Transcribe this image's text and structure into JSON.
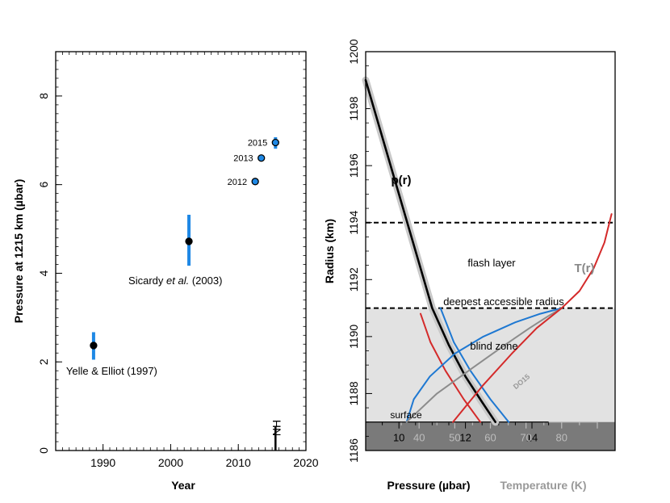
{
  "chart_data": [
    {
      "type": "scatter",
      "xlabel": "Year",
      "ylabel": "Pressure at 1215 km (µbar)",
      "xlim": [
        1983,
        2020
      ],
      "ylim": [
        0,
        9
      ],
      "xticks": [
        "1990",
        "2000",
        "2010",
        "2020"
      ],
      "yticks": [
        "0",
        "2",
        "4",
        "6",
        "8"
      ],
      "points": [
        {
          "x": 1988.6,
          "y": 2.37,
          "err_low": 0.32,
          "err_high": 0.3,
          "label": "Yelle & Elliot (1997)"
        },
        {
          "x": 2002.7,
          "y": 4.72,
          "err_low": 0.55,
          "err_high": 0.6,
          "label": "Sicardy",
          "label_italic": "et al.",
          "label_suffix": "(2003)"
        },
        {
          "x": 2012.5,
          "y": 6.07,
          "err_low": 0.05,
          "err_high": 0.05,
          "label": "2012"
        },
        {
          "x": 2013.4,
          "y": 6.6,
          "err_low": 0.05,
          "err_high": 0.05,
          "label": "2013"
        },
        {
          "x": 2015.5,
          "y": 6.95,
          "err_low": 0.14,
          "err_high": 0.12,
          "label": "2015"
        }
      ],
      "marker": {
        "x": 2015.5,
        "label": "NH"
      }
    },
    {
      "type": "line",
      "ylabel": "Radius (km)",
      "xlabel": "Pressure (µbar)",
      "xlabel_secondary": "Temperature (K)",
      "ylim": [
        1186,
        1200
      ],
      "pressure_xlim": [
        9,
        16.5
      ],
      "pressure_ticks": [
        "10",
        "12",
        "14"
      ],
      "temperature_xlim": [
        25,
        95
      ],
      "temperature_ticks": [
        "40",
        "50",
        "60",
        "70",
        "80"
      ],
      "yticks": [
        "1186",
        "1188",
        "1190",
        "1192",
        "1194",
        "1196",
        "1198",
        "1200"
      ],
      "horizontal_lines": [
        {
          "y": 1194.0,
          "label": "flash layer"
        },
        {
          "y": 1191.0,
          "label": "deepest accessible radius"
        }
      ],
      "blind_zone": {
        "from": 1187.0,
        "to": 1191.0,
        "label": "blind zone"
      },
      "surface": {
        "y": 1187.0,
        "label": "surface"
      },
      "series": [
        {
          "name": "p(r)",
          "kind": "pressure",
          "color": "#000000",
          "points": [
            [
              9.0,
              1199
            ],
            [
              9.5,
              1197
            ],
            [
              10.0,
              1195
            ],
            [
              10.5,
              1193
            ],
            [
              11.0,
              1191
            ],
            [
              11.5,
              1189.7
            ],
            [
              12.0,
              1188.6
            ],
            [
              12.5,
              1187.7
            ],
            [
              12.9,
              1187.0
            ]
          ]
        },
        {
          "name": "p(r) envelope",
          "kind": "pressure",
          "color": "#c8c8c8",
          "points": [
            [
              9.0,
              1199
            ],
            [
              9.5,
              1197
            ],
            [
              10.0,
              1195
            ],
            [
              10.5,
              1193
            ],
            [
              11.0,
              1191
            ],
            [
              11.5,
              1189.7
            ],
            [
              12.0,
              1188.6
            ],
            [
              12.5,
              1187.7
            ],
            [
              12.9,
              1187.0
            ]
          ]
        },
        {
          "name": "pressure blue",
          "kind": "pressure",
          "color": "#1e78d2",
          "points": [
            [
              11.25,
              1191
            ],
            [
              11.65,
              1189.8
            ],
            [
              12.15,
              1188.8
            ],
            [
              12.75,
              1187.8
            ],
            [
              13.3,
              1187.0
            ]
          ]
        },
        {
          "name": "pressure red",
          "kind": "pressure",
          "color": "#d42a2a",
          "points": [
            [
              10.65,
              1190.8
            ],
            [
              10.95,
              1189.8
            ],
            [
              11.4,
              1188.8
            ],
            [
              11.95,
              1187.8
            ],
            [
              12.45,
              1187.0
            ]
          ]
        },
        {
          "name": "T(r)",
          "kind": "temperature",
          "color": "#d42a2a",
          "points": [
            [
              49.5,
              1187.0
            ],
            [
              58,
              1188.3
            ],
            [
              66,
              1189.4
            ],
            [
              73,
              1190.3
            ],
            [
              80,
              1191.0
            ],
            [
              85,
              1191.6
            ],
            [
              89,
              1192.4
            ],
            [
              92,
              1193.3
            ],
            [
              94,
              1194.3
            ]
          ]
        },
        {
          "name": "DO15",
          "kind": "temperature",
          "color": "#8c8c8c",
          "points": [
            [
              36.5,
              1187.0
            ],
            [
              45,
              1188.0
            ],
            [
              55,
              1188.9
            ],
            [
              64,
              1189.7
            ],
            [
              71,
              1190.3
            ],
            [
              76,
              1190.7
            ],
            [
              80,
              1191.0
            ]
          ]
        },
        {
          "name": "temperature blue",
          "kind": "temperature",
          "color": "#1e78d2",
          "points": [
            [
              36.5,
              1187.0
            ],
            [
              38.5,
              1187.8
            ],
            [
              43,
              1188.6
            ],
            [
              50,
              1189.4
            ],
            [
              58,
              1190.0
            ],
            [
              67,
              1190.5
            ],
            [
              74,
              1190.8
            ],
            [
              80,
              1191.0
            ]
          ]
        }
      ],
      "labels": {
        "pressure_curve": "p(r)",
        "temperature_curve": "T(r)",
        "model": "DO15"
      }
    }
  ]
}
